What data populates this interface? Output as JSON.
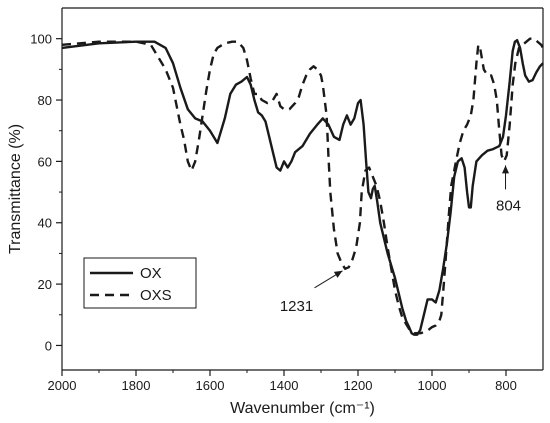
{
  "chart_data": {
    "type": "line",
    "xlabel": "Wavenumber (cm⁻¹)",
    "ylabel": "Transmittance (%)",
    "xlim": [
      2000,
      700
    ],
    "ylim": [
      -8,
      110
    ],
    "x_reversed": true,
    "x_ticks": [
      2000,
      1800,
      1600,
      1400,
      1200,
      1000,
      800
    ],
    "y_ticks": [
      0,
      20,
      40,
      60,
      80,
      100
    ],
    "grid": false,
    "legend_position": "bottom-left",
    "colors": {
      "axis": "#1a1a1a",
      "series": "#1a1a1a"
    },
    "series": [
      {
        "name": "OX",
        "style": "solid",
        "points": [
          [
            2000,
            97
          ],
          [
            1900,
            98.5
          ],
          [
            1800,
            99
          ],
          [
            1750,
            99
          ],
          [
            1720,
            97
          ],
          [
            1700,
            92
          ],
          [
            1680,
            84
          ],
          [
            1660,
            77
          ],
          [
            1640,
            74
          ],
          [
            1620,
            73
          ],
          [
            1600,
            70
          ],
          [
            1580,
            66
          ],
          [
            1560,
            74
          ],
          [
            1545,
            82
          ],
          [
            1530,
            85
          ],
          [
            1515,
            86
          ],
          [
            1500,
            87.5
          ],
          [
            1490,
            85
          ],
          [
            1480,
            80
          ],
          [
            1470,
            76
          ],
          [
            1460,
            75
          ],
          [
            1450,
            73
          ],
          [
            1440,
            68
          ],
          [
            1430,
            63
          ],
          [
            1420,
            58
          ],
          [
            1410,
            57
          ],
          [
            1400,
            60
          ],
          [
            1390,
            58
          ],
          [
            1380,
            60
          ],
          [
            1370,
            63
          ],
          [
            1350,
            65
          ],
          [
            1330,
            69
          ],
          [
            1310,
            72
          ],
          [
            1295,
            74
          ],
          [
            1280,
            72
          ],
          [
            1265,
            68
          ],
          [
            1250,
            67
          ],
          [
            1240,
            72
          ],
          [
            1230,
            75
          ],
          [
            1220,
            72
          ],
          [
            1210,
            74
          ],
          [
            1200,
            79
          ],
          [
            1193,
            80
          ],
          [
            1185,
            72
          ],
          [
            1178,
            60
          ],
          [
            1172,
            50
          ],
          [
            1165,
            48
          ],
          [
            1160,
            51
          ],
          [
            1155,
            52
          ],
          [
            1148,
            47
          ],
          [
            1140,
            40
          ],
          [
            1130,
            35
          ],
          [
            1120,
            30
          ],
          [
            1110,
            26
          ],
          [
            1100,
            22
          ],
          [
            1090,
            17
          ],
          [
            1080,
            12
          ],
          [
            1070,
            8
          ],
          [
            1062,
            6
          ],
          [
            1055,
            4
          ],
          [
            1048,
            3.5
          ],
          [
            1040,
            3.5
          ],
          [
            1032,
            5
          ],
          [
            1022,
            10
          ],
          [
            1012,
            15
          ],
          [
            1000,
            15
          ],
          [
            990,
            14
          ],
          [
            980,
            18
          ],
          [
            970,
            25
          ],
          [
            960,
            33
          ],
          [
            950,
            43
          ],
          [
            940,
            55
          ],
          [
            930,
            60
          ],
          [
            920,
            61
          ],
          [
            912,
            58
          ],
          [
            905,
            50
          ],
          [
            900,
            45
          ],
          [
            895,
            45
          ],
          [
            890,
            52
          ],
          [
            880,
            60
          ],
          [
            865,
            62
          ],
          [
            850,
            63.5
          ],
          [
            835,
            64
          ],
          [
            818,
            65
          ],
          [
            808,
            68
          ],
          [
            800,
            75
          ],
          [
            790,
            86
          ],
          [
            782,
            96
          ],
          [
            776,
            99
          ],
          [
            770,
            99.5
          ],
          [
            762,
            97
          ],
          [
            755,
            92
          ],
          [
            748,
            88
          ],
          [
            738,
            86
          ],
          [
            728,
            86.5
          ],
          [
            718,
            89
          ],
          [
            708,
            91
          ],
          [
            700,
            92
          ]
        ]
      },
      {
        "name": "OXS",
        "style": "dashed",
        "points": [
          [
            2000,
            98
          ],
          [
            1900,
            99
          ],
          [
            1800,
            99
          ],
          [
            1760,
            98
          ],
          [
            1740,
            94
          ],
          [
            1720,
            90
          ],
          [
            1700,
            84
          ],
          [
            1690,
            78
          ],
          [
            1680,
            72
          ],
          [
            1670,
            67
          ],
          [
            1660,
            60
          ],
          [
            1650,
            57
          ],
          [
            1640,
            60
          ],
          [
            1630,
            67
          ],
          [
            1620,
            75
          ],
          [
            1610,
            83
          ],
          [
            1600,
            90
          ],
          [
            1590,
            95
          ],
          [
            1580,
            97
          ],
          [
            1560,
            98.5
          ],
          [
            1540,
            99
          ],
          [
            1525,
            99
          ],
          [
            1510,
            97
          ],
          [
            1500,
            93
          ],
          [
            1490,
            87
          ],
          [
            1480,
            82
          ],
          [
            1470,
            82
          ],
          [
            1460,
            80
          ],
          [
            1445,
            79
          ],
          [
            1430,
            80
          ],
          [
            1420,
            82
          ],
          [
            1410,
            78
          ],
          [
            1400,
            77
          ],
          [
            1385,
            77
          ],
          [
            1370,
            79
          ],
          [
            1360,
            81
          ],
          [
            1350,
            85
          ],
          [
            1340,
            88
          ],
          [
            1330,
            90
          ],
          [
            1320,
            91
          ],
          [
            1310,
            90
          ],
          [
            1300,
            88
          ],
          [
            1295,
            85
          ],
          [
            1285,
            75
          ],
          [
            1280,
            62
          ],
          [
            1275,
            50
          ],
          [
            1265,
            38
          ],
          [
            1255,
            30
          ],
          [
            1245,
            27
          ],
          [
            1235,
            25
          ],
          [
            1225,
            25.5
          ],
          [
            1215,
            28
          ],
          [
            1205,
            32
          ],
          [
            1195,
            40
          ],
          [
            1190,
            50
          ],
          [
            1180,
            57
          ],
          [
            1170,
            58
          ],
          [
            1160,
            55
          ],
          [
            1150,
            52
          ],
          [
            1140,
            47
          ],
          [
            1130,
            40
          ],
          [
            1120,
            32
          ],
          [
            1110,
            25
          ],
          [
            1100,
            18
          ],
          [
            1090,
            13
          ],
          [
            1080,
            9
          ],
          [
            1070,
            7
          ],
          [
            1060,
            5
          ],
          [
            1050,
            4
          ],
          [
            1040,
            4
          ],
          [
            1030,
            4
          ],
          [
            1020,
            4.5
          ],
          [
            1010,
            5
          ],
          [
            1000,
            6
          ],
          [
            990,
            6.5
          ],
          [
            980,
            8
          ],
          [
            975,
            10
          ],
          [
            968,
            20
          ],
          [
            962,
            30
          ],
          [
            955,
            42
          ],
          [
            948,
            52
          ],
          [
            940,
            57
          ],
          [
            932,
            62
          ],
          [
            925,
            66
          ],
          [
            915,
            70
          ],
          [
            905,
            72
          ],
          [
            895,
            75
          ],
          [
            888,
            80
          ],
          [
            880,
            92
          ],
          [
            875,
            98
          ],
          [
            870,
            97
          ],
          [
            860,
            90
          ],
          [
            850,
            88
          ],
          [
            840,
            88
          ],
          [
            832,
            85
          ],
          [
            825,
            80
          ],
          [
            818,
            70
          ],
          [
            812,
            62
          ],
          [
            805,
            60
          ],
          [
            798,
            62
          ],
          [
            790,
            72
          ],
          [
            782,
            85
          ],
          [
            775,
            92
          ],
          [
            765,
            97
          ],
          [
            755,
            98
          ],
          [
            745,
            99
          ],
          [
            735,
            100
          ],
          [
            725,
            100
          ],
          [
            715,
            99
          ],
          [
            705,
            98
          ],
          [
            700,
            97
          ]
        ]
      }
    ],
    "annotations": [
      {
        "label": "1231",
        "target": [
          1231,
          25
        ]
      },
      {
        "label": "804",
        "target": [
          804,
          60
        ]
      }
    ]
  }
}
